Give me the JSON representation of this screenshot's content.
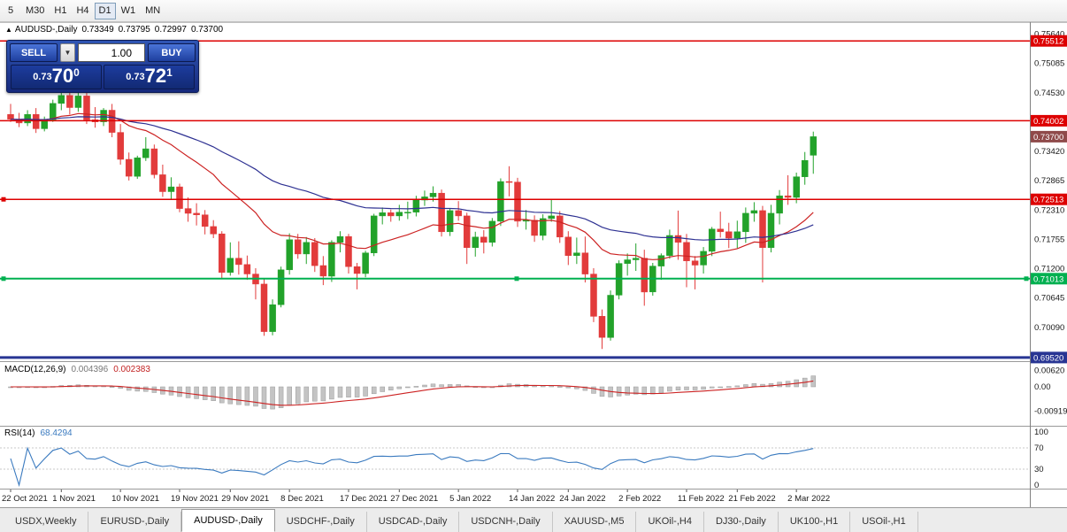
{
  "toolbar": {
    "periods": [
      "5",
      "M30",
      "H1",
      "H4",
      "D1",
      "W1",
      "MN"
    ],
    "active": "D1"
  },
  "chart": {
    "arrow": "▲",
    "symbol": "AUDUSD-,Daily",
    "ohlc": {
      "o": "0.73349",
      "h": "0.73795",
      "l": "0.72997",
      "c": "0.73700"
    }
  },
  "trade_panel": {
    "sell_label": "SELL",
    "buy_label": "BUY",
    "volume": "1.00",
    "dropdown_icon": "▼",
    "sell_price": {
      "prefix": "0.73",
      "big": "70",
      "sup": "0"
    },
    "buy_price": {
      "prefix": "0.73",
      "big": "72",
      "sup": "1"
    }
  },
  "indicators": {
    "macd": {
      "name": "MACD(12,26,9)",
      "main": "0.004396",
      "signal": "0.002383"
    },
    "rsi": {
      "name": "RSI(14)",
      "value": "68.4294"
    }
  },
  "bottom_tabs": {
    "active": "AUDUSD-,Daily",
    "tabs": [
      "USDX,Weekly",
      "EURUSD-,Daily",
      "AUDUSD-,Daily",
      "USDCHF-,Daily",
      "USDCAD-,Daily",
      "USDCNH-,Daily",
      "XAUUSD-,M5",
      "UKOil-,H4",
      "DJ30-,Daily",
      "UK100-,H1",
      "USOil-,H1"
    ]
  },
  "chart_data": {
    "type": "candlestick",
    "symbol": "AUDUSD",
    "timeframe": "Daily",
    "bid": 0.737,
    "ask": 0.73721,
    "last_bar": {
      "open": 0.73349,
      "high": 0.73795,
      "low": 0.72997,
      "close": 0.737
    },
    "style": {
      "bull": "#22a22a",
      "bear": "#e23b3b"
    },
    "moving_averages": [
      {
        "period": 20,
        "color": "#cc2222"
      },
      {
        "period": 50,
        "color": "#2e3192"
      }
    ],
    "macd_params": {
      "fast": 12,
      "slow": 26,
      "signal": 9,
      "current_main": 0.004396,
      "current_signal": 0.002383
    },
    "rsi_period": 14,
    "rsi_current": 68.4294,
    "rsi_axis": [
      100,
      70,
      30,
      0
    ],
    "rsi_dotted": [
      70,
      30
    ],
    "macd_axis": [
      {
        "label": "0.00620",
        "value": 0.0062
      },
      {
        "label": "0.00",
        "value": 0
      },
      {
        "label": "-0.00919",
        "value": -0.00919
      }
    ],
    "price_ticks": [
      0.7564,
      0.75085,
      0.7453,
      0.73975,
      0.7342,
      0.72865,
      0.7231,
      0.71755,
      0.712,
      0.70645,
      0.7009,
      0.69535
    ],
    "price_levels": [
      {
        "price": 0.75512,
        "badge": "0.75512",
        "color": "#dd0000",
        "width": 1.5,
        "handles": []
      },
      {
        "price": 0.74002,
        "badge": "0.74002",
        "color": "#dd0000",
        "width": 1.5,
        "handles": []
      },
      {
        "price": 0.737,
        "badge": "0.73700",
        "color": "#8f4a4a",
        "line": false,
        "handles": []
      },
      {
        "price": 0.72513,
        "badge": "0.72513",
        "color": "#dd0000",
        "width": 1.5,
        "handles": [
          4
        ]
      },
      {
        "price": 0.71013,
        "badge": "0.71013",
        "color": "#00b050",
        "width": 2,
        "handles": [
          4,
          584,
          1160
        ]
      },
      {
        "price": 0.6952,
        "badge": "0.69520",
        "color": "#283593",
        "width": 3,
        "handles": []
      }
    ],
    "x_labels": [
      {
        "text": "22 Oct 2021",
        "index": 0
      },
      {
        "text": "1 Nov 2021",
        "index": 6
      },
      {
        "text": "10 Nov 2021",
        "index": 13
      },
      {
        "text": "19 Nov 2021",
        "index": 20
      },
      {
        "text": "29 Nov 2021",
        "index": 26
      },
      {
        "text": "8 Dec 2021",
        "index": 33
      },
      {
        "text": "17 Dec 2021",
        "index": 40
      },
      {
        "text": "27 Dec 2021",
        "index": 46
      },
      {
        "text": "5 Jan 2022",
        "index": 53
      },
      {
        "text": "14 Jan 2022",
        "index": 60
      },
      {
        "text": "24 Jan 2022",
        "index": 66
      },
      {
        "text": "2 Feb 2022",
        "index": 73
      },
      {
        "text": "11 Feb 2022",
        "index": 80
      },
      {
        "text": "21 Feb 2022",
        "index": 86
      },
      {
        "text": "2 Mar 2022",
        "index": 93
      }
    ],
    "candles": [
      [
        0.7412,
        0.7432,
        0.7398,
        0.7403
      ],
      [
        0.7403,
        0.7415,
        0.7388,
        0.7396
      ],
      [
        0.7396,
        0.742,
        0.739,
        0.7412
      ],
      [
        0.7412,
        0.7424,
        0.7377,
        0.7385
      ],
      [
        0.7385,
        0.7408,
        0.738,
        0.7402
      ],
      [
        0.7402,
        0.744,
        0.7398,
        0.7433
      ],
      [
        0.7433,
        0.7456,
        0.742,
        0.7448
      ],
      [
        0.7448,
        0.746,
        0.7412,
        0.7425
      ],
      [
        0.7425,
        0.7453,
        0.7417,
        0.7447
      ],
      [
        0.7447,
        0.7455,
        0.7394,
        0.7402
      ],
      [
        0.7402,
        0.7426,
        0.7387,
        0.7398
      ],
      [
        0.7398,
        0.7424,
        0.739,
        0.742
      ],
      [
        0.742,
        0.7432,
        0.7369,
        0.7378
      ],
      [
        0.7378,
        0.7394,
        0.7317,
        0.7327
      ],
      [
        0.7327,
        0.734,
        0.7287,
        0.7295
      ],
      [
        0.7295,
        0.7334,
        0.729,
        0.733
      ],
      [
        0.733,
        0.7369,
        0.7324,
        0.7347
      ],
      [
        0.7347,
        0.7355,
        0.7291,
        0.7298
      ],
      [
        0.7298,
        0.7317,
        0.7256,
        0.7266
      ],
      [
        0.7266,
        0.7293,
        0.725,
        0.7275
      ],
      [
        0.7275,
        0.7281,
        0.7227,
        0.7234
      ],
      [
        0.7234,
        0.7255,
        0.7209,
        0.7225
      ],
      [
        0.7225,
        0.7244,
        0.7202,
        0.7222
      ],
      [
        0.7222,
        0.7231,
        0.7185,
        0.72
      ],
      [
        0.72,
        0.7212,
        0.7178,
        0.7186
      ],
      [
        0.7186,
        0.7191,
        0.71,
        0.7113
      ],
      [
        0.7113,
        0.717,
        0.7107,
        0.714
      ],
      [
        0.714,
        0.7172,
        0.7109,
        0.7128
      ],
      [
        0.7128,
        0.7145,
        0.7099,
        0.711
      ],
      [
        0.711,
        0.7121,
        0.7062,
        0.7091
      ],
      [
        0.7091,
        0.7102,
        0.6993,
        0.7001
      ],
      [
        0.7001,
        0.7062,
        0.6994,
        0.7052
      ],
      [
        0.7052,
        0.7124,
        0.7047,
        0.7118
      ],
      [
        0.7118,
        0.7187,
        0.7109,
        0.7175
      ],
      [
        0.7175,
        0.7186,
        0.7139,
        0.7148
      ],
      [
        0.7148,
        0.718,
        0.7129,
        0.717
      ],
      [
        0.717,
        0.7178,
        0.7114,
        0.7126
      ],
      [
        0.7126,
        0.7144,
        0.7089,
        0.7106
      ],
      [
        0.7106,
        0.7174,
        0.7095,
        0.717
      ],
      [
        0.717,
        0.7191,
        0.7151,
        0.7181
      ],
      [
        0.7181,
        0.7186,
        0.7111,
        0.7124
      ],
      [
        0.7124,
        0.7131,
        0.7081,
        0.7111
      ],
      [
        0.7111,
        0.7154,
        0.7104,
        0.715
      ],
      [
        0.715,
        0.7224,
        0.7144,
        0.722
      ],
      [
        0.722,
        0.7236,
        0.7204,
        0.7226
      ],
      [
        0.7226,
        0.7232,
        0.7209,
        0.722
      ],
      [
        0.722,
        0.7241,
        0.7211,
        0.7227
      ],
      [
        0.7227,
        0.7247,
        0.7214,
        0.7227
      ],
      [
        0.7227,
        0.7258,
        0.7219,
        0.725
      ],
      [
        0.725,
        0.7268,
        0.7239,
        0.7256
      ],
      [
        0.7256,
        0.7276,
        0.7247,
        0.7263
      ],
      [
        0.7263,
        0.727,
        0.7181,
        0.719
      ],
      [
        0.719,
        0.7234,
        0.7182,
        0.723
      ],
      [
        0.723,
        0.7248,
        0.7211,
        0.722
      ],
      [
        0.722,
        0.7226,
        0.7129,
        0.716
      ],
      [
        0.716,
        0.719,
        0.7143,
        0.718
      ],
      [
        0.718,
        0.7193,
        0.7149,
        0.717
      ],
      [
        0.717,
        0.7216,
        0.7162,
        0.721
      ],
      [
        0.721,
        0.7291,
        0.7201,
        0.7285
      ],
      [
        0.7285,
        0.7314,
        0.7257,
        0.7284
      ],
      [
        0.7284,
        0.7292,
        0.7199,
        0.721
      ],
      [
        0.721,
        0.7231,
        0.7194,
        0.7212
      ],
      [
        0.7212,
        0.7221,
        0.7171,
        0.7183
      ],
      [
        0.7183,
        0.7223,
        0.7174,
        0.7215
      ],
      [
        0.7215,
        0.7251,
        0.7209,
        0.722
      ],
      [
        0.722,
        0.7229,
        0.7169,
        0.718
      ],
      [
        0.718,
        0.7191,
        0.7127,
        0.7145
      ],
      [
        0.7145,
        0.7179,
        0.7129,
        0.715
      ],
      [
        0.715,
        0.7181,
        0.7094,
        0.711
      ],
      [
        0.711,
        0.7121,
        0.7019,
        0.703
      ],
      [
        0.703,
        0.7043,
        0.6968,
        0.699
      ],
      [
        0.699,
        0.7079,
        0.6984,
        0.707
      ],
      [
        0.707,
        0.7136,
        0.7062,
        0.713
      ],
      [
        0.713,
        0.7149,
        0.7107,
        0.7137
      ],
      [
        0.7137,
        0.7168,
        0.7116,
        0.714
      ],
      [
        0.714,
        0.7156,
        0.705,
        0.7076
      ],
      [
        0.7076,
        0.7131,
        0.7069,
        0.7125
      ],
      [
        0.7125,
        0.7149,
        0.7099,
        0.7145
      ],
      [
        0.7145,
        0.7194,
        0.7139,
        0.7183
      ],
      [
        0.7183,
        0.723,
        0.7137,
        0.717
      ],
      [
        0.717,
        0.7186,
        0.7085,
        0.7135
      ],
      [
        0.7135,
        0.7144,
        0.7081,
        0.7127
      ],
      [
        0.7127,
        0.7161,
        0.7111,
        0.7153
      ],
      [
        0.7153,
        0.7199,
        0.7144,
        0.7195
      ],
      [
        0.7195,
        0.7228,
        0.7179,
        0.719
      ],
      [
        0.719,
        0.7207,
        0.7159,
        0.7178
      ],
      [
        0.7178,
        0.7211,
        0.7159,
        0.719
      ],
      [
        0.719,
        0.7236,
        0.7169,
        0.7225
      ],
      [
        0.7225,
        0.7246,
        0.7209,
        0.723
      ],
      [
        0.723,
        0.7239,
        0.7094,
        0.716
      ],
      [
        0.716,
        0.7241,
        0.7151,
        0.7225
      ],
      [
        0.7225,
        0.7269,
        0.7204,
        0.7258
      ],
      [
        0.7258,
        0.7297,
        0.7241,
        0.7255
      ],
      [
        0.7255,
        0.7302,
        0.7244,
        0.7294
      ],
      [
        0.7294,
        0.7341,
        0.7279,
        0.7325
      ],
      [
        0.73349,
        0.73795,
        0.72997,
        0.737
      ]
    ]
  }
}
